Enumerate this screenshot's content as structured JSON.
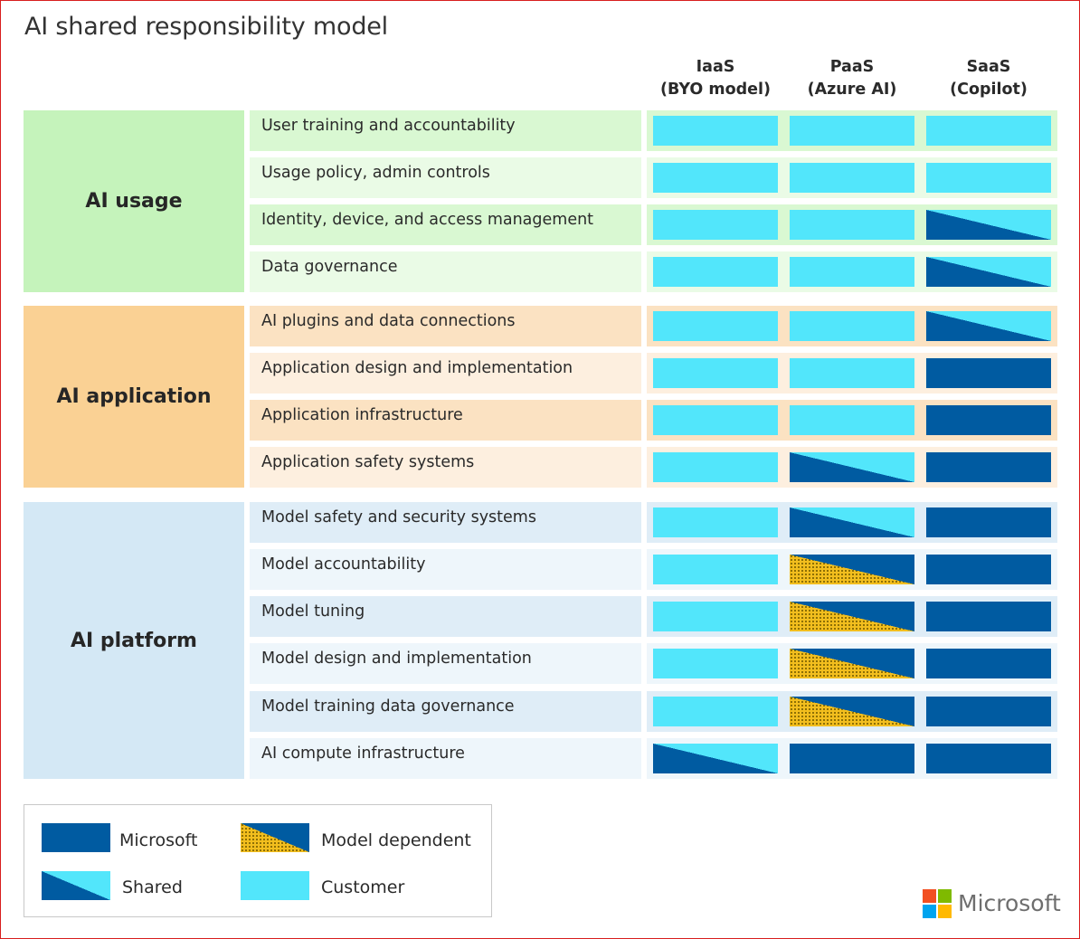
{
  "title": "AI shared responsibility model",
  "columns": [
    {
      "line1": "IaaS",
      "line2": "(BYO model)"
    },
    {
      "line1": "PaaS",
      "line2": "(Azure AI)"
    },
    {
      "line1": "SaaS",
      "line2": "(Copilot)"
    }
  ],
  "sections": [
    {
      "label": "AI usage",
      "colors": {
        "section": "#c5f3bb",
        "band_dark": "#d9f8d2",
        "band_light": "#eafbe6"
      },
      "rows": [
        {
          "label": "User training and accountability",
          "cells": [
            "customer",
            "customer",
            "customer"
          ]
        },
        {
          "label": "Usage policy, admin controls",
          "cells": [
            "customer",
            "customer",
            "customer"
          ]
        },
        {
          "label": "Identity, device, and access management",
          "cells": [
            "customer",
            "customer",
            "shared"
          ]
        },
        {
          "label": "Data governance",
          "cells": [
            "customer",
            "customer",
            "shared"
          ]
        }
      ]
    },
    {
      "label": "AI application",
      "colors": {
        "section": "#fad194",
        "band_dark": "#fbe2c2",
        "band_light": "#fdefdf"
      },
      "rows": [
        {
          "label": "AI plugins and data connections",
          "cells": [
            "customer",
            "customer",
            "shared"
          ]
        },
        {
          "label": "Application design and implementation",
          "cells": [
            "customer",
            "customer",
            "microsoft"
          ]
        },
        {
          "label": "Application infrastructure",
          "cells": [
            "customer",
            "customer",
            "microsoft"
          ]
        },
        {
          "label": "Application safety systems",
          "cells": [
            "customer",
            "shared",
            "microsoft"
          ]
        }
      ]
    },
    {
      "label": "AI platform",
      "colors": {
        "section": "#d4e8f5",
        "band_dark": "#dfedf7",
        "band_light": "#eef6fb"
      },
      "rows": [
        {
          "label": "Model safety and security systems",
          "cells": [
            "customer",
            "shared",
            "microsoft"
          ]
        },
        {
          "label": "Model accountability",
          "cells": [
            "customer",
            "model-dependent",
            "microsoft"
          ]
        },
        {
          "label": "Model tuning",
          "cells": [
            "customer",
            "model-dependent",
            "microsoft"
          ]
        },
        {
          "label": "Model design and implementation",
          "cells": [
            "customer",
            "model-dependent",
            "microsoft"
          ]
        },
        {
          "label": "Model training data governance",
          "cells": [
            "customer",
            "model-dependent",
            "microsoft"
          ]
        },
        {
          "label": "AI compute infrastructure",
          "cells": [
            "shared",
            "microsoft",
            "microsoft"
          ]
        }
      ]
    }
  ],
  "legend": {
    "microsoft": "Microsoft",
    "model_dependent": "Model dependent",
    "shared": "Shared",
    "customer": "Customer"
  },
  "colors": {
    "microsoft": "#005ba1",
    "customer": "#52e6fb",
    "model_dependent": "#f2be1e",
    "border": "#d81e1e"
  },
  "brand": {
    "name": "Microsoft",
    "logo_colors": [
      "#f25022",
      "#7fba00",
      "#00a4ef",
      "#ffb900"
    ]
  }
}
